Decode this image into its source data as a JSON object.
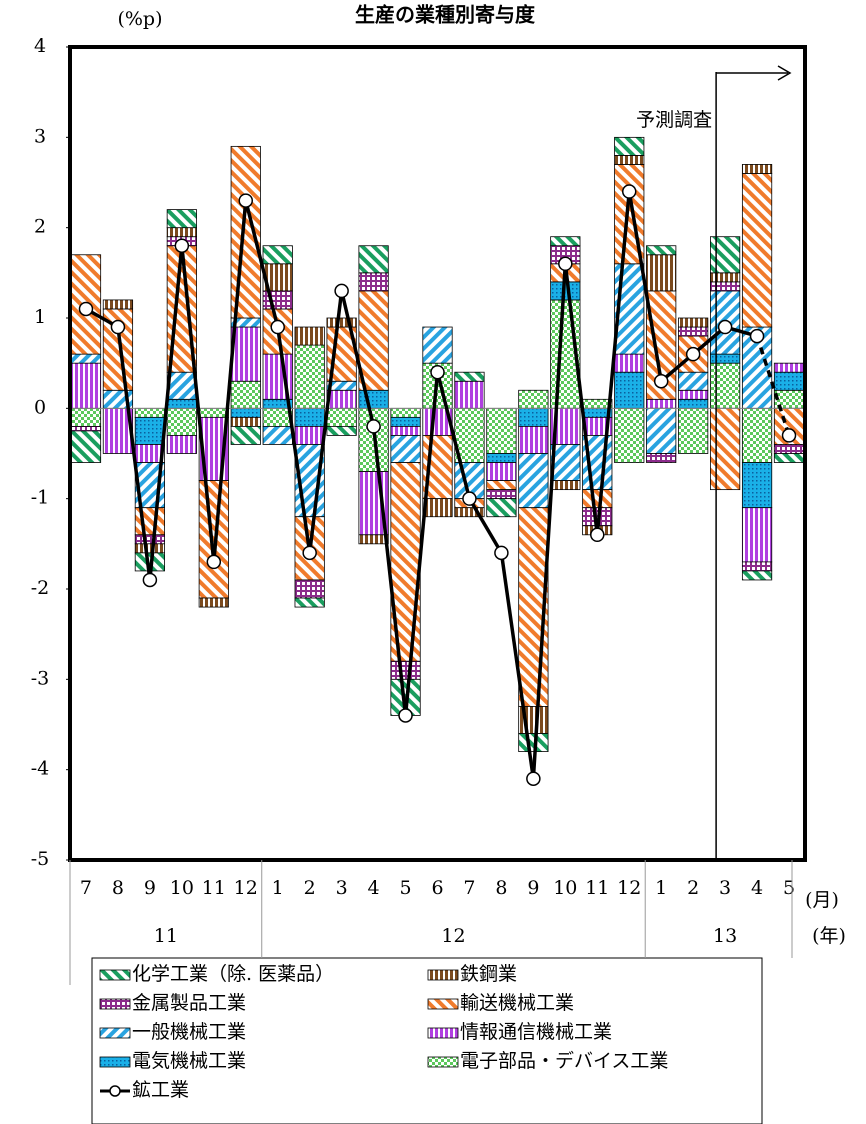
{
  "chart_data": {
    "type": "bar",
    "stacked": true,
    "title": "生産の業種別寄与度",
    "y_label": "(%p)",
    "categories": [
      "7",
      "8",
      "9",
      "10",
      "11",
      "12",
      "1",
      "2",
      "3",
      "4",
      "5",
      "6",
      "7",
      "8",
      "9",
      "10",
      "11",
      "12",
      "1",
      "2",
      "3",
      "4",
      "5"
    ],
    "x_unit": "(月)",
    "group_unit": "(年)",
    "x_groups": [
      {
        "label": "11",
        "count": 6
      },
      {
        "label": "12",
        "count": 12
      },
      {
        "label": "13",
        "count": 5
      }
    ],
    "annotation": "予測調査",
    "ylim": [
      -5,
      4
    ],
    "yticks": [
      -5,
      -4,
      -3,
      -2,
      -1,
      0,
      1,
      2,
      3,
      4
    ],
    "series": [
      {
        "name": "化学工業（除. 医薬品）",
        "color": "#1a9e5f",
        "pattern": "diag-l",
        "values": [
          -0.35,
          0,
          -0.2,
          0.2,
          0,
          -0.2,
          0.2,
          -0.1,
          -0.1,
          0.3,
          -0.4,
          0,
          0.1,
          -0.2,
          -0.2,
          0.1,
          0,
          0.2,
          0.1,
          0,
          0.4,
          -0.1,
          -0.1
        ]
      },
      {
        "name": "鉄鋼業",
        "color": "#7b4a1e",
        "pattern": "vertical",
        "values": [
          0,
          0.1,
          -0.1,
          0.1,
          -0.1,
          -0.1,
          0.3,
          0.2,
          0.1,
          -0.1,
          0,
          -0.2,
          -0.1,
          0,
          -0.3,
          -0.1,
          -0.1,
          0.1,
          0.4,
          0.1,
          0.1,
          0.1,
          0
        ]
      },
      {
        "name": "金属製品工業",
        "color": "#8b2b8b",
        "pattern": "grid",
        "values": [
          -0.05,
          0,
          -0.1,
          0.1,
          0,
          0,
          0.2,
          -0.2,
          0,
          0.2,
          -0.2,
          0,
          0,
          -0.1,
          0,
          0.2,
          -0.2,
          0,
          -0.1,
          0.1,
          0.1,
          -0.1,
          -0.1
        ]
      },
      {
        "name": "輸送機械工業",
        "color": "#f07b2c",
        "pattern": "diag-l",
        "values": [
          1.1,
          0.9,
          -0.3,
          1.4,
          -1.3,
          1.9,
          0.5,
          -0.7,
          0.6,
          1.1,
          -2.2,
          -0.7,
          -0.1,
          -0.1,
          -2.2,
          0.2,
          -0.2,
          1.1,
          1.2,
          0.4,
          -0.9,
          1.7,
          -0.4
        ]
      },
      {
        "name": "一般機械工業",
        "color": "#29a3e0",
        "pattern": "diag-r",
        "values": [
          0.1,
          0.2,
          -0.5,
          0.3,
          0,
          0.1,
          -0.2,
          -0.8,
          0.1,
          0,
          -0.3,
          0.4,
          -0.4,
          0,
          -0.6,
          -0.4,
          -0.6,
          1.0,
          -0.5,
          0.2,
          0.7,
          0.9,
          0
        ]
      },
      {
        "name": "情報通信機械工業",
        "color": "#b040e0",
        "pattern": "vertical",
        "values": [
          0.5,
          -0.5,
          -0.2,
          -0.2,
          -0.7,
          0.6,
          0.5,
          -0.2,
          0.2,
          -0.7,
          -0.1,
          -0.3,
          0.3,
          -0.2,
          -0.3,
          -0.4,
          -0.2,
          0.2,
          0.1,
          0.1,
          0,
          -0.6,
          0.1
        ]
      },
      {
        "name": "電気機械工業",
        "color": "#1ab0e8",
        "pattern": "dots",
        "values": [
          0,
          0,
          -0.3,
          0.1,
          0,
          -0.1,
          0.1,
          -0.2,
          0,
          0.2,
          -0.1,
          0,
          0,
          -0.1,
          -0.2,
          0.2,
          -0.1,
          0.4,
          0,
          0.1,
          0.1,
          -0.5,
          0.2
        ]
      },
      {
        "name": "電子部品・デバイス工業",
        "color": "#5cc85c",
        "pattern": "checker",
        "values": [
          -0.2,
          0,
          -0.1,
          -0.3,
          -0.1,
          0.3,
          -0.2,
          0.7,
          -0.2,
          -0.7,
          -0.1,
          0.5,
          -0.6,
          -0.5,
          0.2,
          1.2,
          0.1,
          -0.6,
          0,
          -0.5,
          0.5,
          -0.6,
          0.2
        ]
      }
    ],
    "line": {
      "name": "鉱工業",
      "color": "#000000",
      "values": [
        1.1,
        0.9,
        -1.9,
        1.8,
        -1.7,
        2.3,
        0.9,
        -1.6,
        1.3,
        -0.2,
        -3.4,
        0.4,
        -1.0,
        -1.6,
        -4.1,
        1.6,
        -1.4,
        2.4,
        0.3,
        0.6,
        0.9,
        0.8,
        -0.3
      ]
    }
  }
}
